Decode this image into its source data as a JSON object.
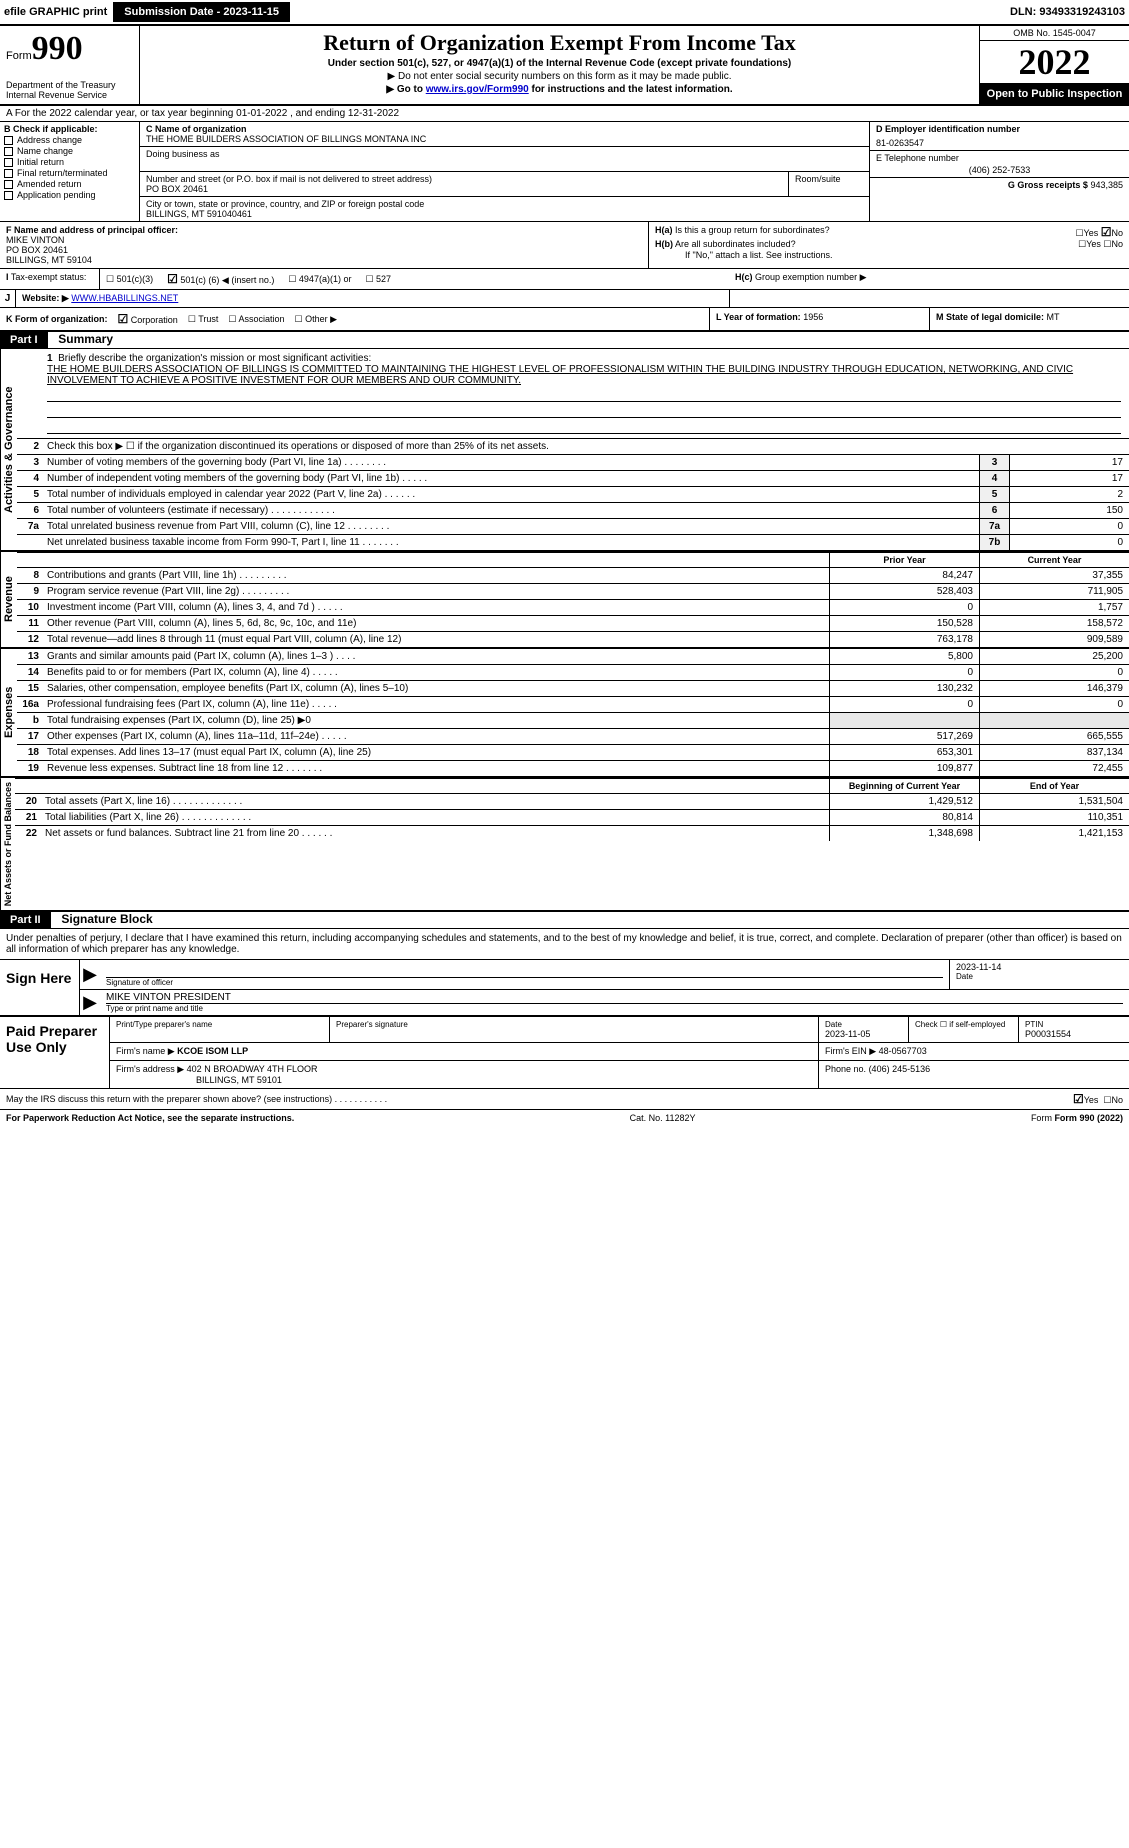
{
  "topbar": {
    "efile_label": "efile GRAPHIC print",
    "submission_label": "Submission Date - 2023-11-15",
    "dln_label": "DLN: 93493319243103"
  },
  "header": {
    "form_prefix": "Form",
    "form_number": "990",
    "title": "Return of Organization Exempt From Income Tax",
    "subtitle": "Under section 501(c), 527, or 4947(a)(1) of the Internal Revenue Code (except private foundations)",
    "note_ssn": "▶ Do not enter social security numbers on this form as it may be made public.",
    "note_link_pre": "▶ Go to ",
    "note_link": "www.irs.gov/Form990",
    "note_link_post": " for instructions and the latest information.",
    "dept": "Department of the Treasury",
    "irs": "Internal Revenue Service",
    "omb": "OMB No. 1545-0047",
    "year": "2022",
    "open_public": "Open to Public Inspection"
  },
  "line_a": "A For the 2022 calendar year, or tax year beginning 01-01-2022     , and ending 12-31-2022",
  "col_b": {
    "header": "B Check if applicable:",
    "items": [
      "Address change",
      "Name change",
      "Initial return",
      "Final return/terminated",
      "Amended return",
      "Application pending"
    ]
  },
  "col_c": {
    "name_label": "C Name of organization",
    "name_val": "THE HOME BUILDERS ASSOCIATION OF BILLINGS MONTANA INC",
    "dba_label": "Doing business as",
    "street_label": "Number and street (or P.O. box if mail is not delivered to street address)",
    "room_label": "Room/suite",
    "street_val": "PO BOX 20461",
    "city_label": "City or town, state or province, country, and ZIP or foreign postal code",
    "city_val": "BILLINGS, MT  591040461"
  },
  "col_de": {
    "d_label": "D Employer identification number",
    "d_val": "81-0263547",
    "e_label": "E Telephone number",
    "e_val": "(406) 252-7533",
    "g_label": "G Gross receipts $",
    "g_val": "943,385"
  },
  "f_block": {
    "label": "F Name and address of principal officer:",
    "name": "MIKE VINTON",
    "addr1": "PO BOX 20461",
    "addr2": "BILLINGS, MT  59104"
  },
  "h_block": {
    "ha_label": "H(a)",
    "ha_text": "Is this a group return for subordinates?",
    "hb_label": "H(b)",
    "hb_text": "Are all subordinates included?",
    "hb_note": "If \"No,\" attach a list. See instructions.",
    "hc_label": "H(c)",
    "hc_text": "Group exemption number ▶",
    "yes": "Yes",
    "no": "No"
  },
  "i_block": {
    "label": "I",
    "text": "Tax-exempt status:",
    "opt1": "501(c)(3)",
    "opt2_pre": "501(c) (",
    "opt2_val": "6",
    "opt2_post": ") ◀ (insert no.)",
    "opt3": "4947(a)(1) or",
    "opt4": "527"
  },
  "j_block": {
    "label": "J",
    "text": "Website: ▶",
    "val": "WWW.HBABILLINGS.NET"
  },
  "k_block": {
    "label": "K Form of organization:",
    "opts": [
      "Corporation",
      "Trust",
      "Association",
      "Other ▶"
    ],
    "l_label": "L Year of formation:",
    "l_val": "1956",
    "m_label": "M State of legal domicile:",
    "m_val": "MT"
  },
  "part1": {
    "part": "Part I",
    "title": "Summary",
    "line1_label": "1",
    "line1_text": "Briefly describe the organization's mission or most significant activities:",
    "mission": "THE HOME BUILDERS ASSOCIATION OF BILLINGS IS COMMITTED TO MAINTAINING THE HIGHEST LEVEL OF PROFESSIONALISM WITHIN THE BUILDING INDUSTRY THROUGH EDUCATION, NETWORKING, AND CIVIC INVOLVEMENT TO ACHIEVE A POSITIVE INVESTMENT FOR OUR MEMBERS AND OUR COMMUNITY.",
    "line2_n": "2",
    "line2_d": "Check this box ▶ ☐ if the organization discontinued its operations or disposed of more than 25% of its net assets.",
    "gov_rows": [
      {
        "n": "3",
        "d": "Number of voting members of the governing body (Part VI, line 1a)  .    .    .    .    .    .    .    .",
        "bn": "3",
        "v": "17"
      },
      {
        "n": "4",
        "d": "Number of independent voting members of the governing body (Part VI, line 1b)   .    .    .    .    .",
        "bn": "4",
        "v": "17"
      },
      {
        "n": "5",
        "d": "Total number of individuals employed in calendar year 2022 (Part V, line 2a)   .    .    .    .    .    .",
        "bn": "5",
        "v": "2"
      },
      {
        "n": "6",
        "d": "Total number of volunteers (estimate if necessary)    .    .    .    .    .    .    .    .    .    .    .    .",
        "bn": "6",
        "v": "150"
      },
      {
        "n": "7a",
        "d": "Total unrelated business revenue from Part VIII, column (C), line 12   .    .    .    .    .    .    .    .",
        "bn": "7a",
        "v": "0"
      },
      {
        "n": "",
        "d": "Net unrelated business taxable income from Form 990-T, Part I, line 11   .    .    .    .    .    .    .",
        "bn": "7b",
        "v": "0"
      }
    ],
    "prior_hdr": "Prior Year",
    "current_hdr": "Current Year",
    "rev_rows": [
      {
        "n": "8",
        "d": "Contributions and grants (Part VIII, line 1h)   .    .    .    .    .    .    .    .    .",
        "p": "84,247",
        "c": "37,355"
      },
      {
        "n": "9",
        "d": "Program service revenue (Part VIII, line 2g)    .    .    .    .    .    .    .    .    .",
        "p": "528,403",
        "c": "711,905"
      },
      {
        "n": "10",
        "d": "Investment income (Part VIII, column (A), lines 3, 4, and 7d )   .    .    .    .    .",
        "p": "0",
        "c": "1,757"
      },
      {
        "n": "11",
        "d": "Other revenue (Part VIII, column (A), lines 5, 6d, 8c, 9c, 10c, and 11e)",
        "p": "150,528",
        "c": "158,572"
      },
      {
        "n": "12",
        "d": "Total revenue—add lines 8 through 11 (must equal Part VIII, column (A), line 12)",
        "p": "763,178",
        "c": "909,589"
      }
    ],
    "exp_rows": [
      {
        "n": "13",
        "d": "Grants and similar amounts paid (Part IX, column (A), lines 1–3 )   .    .    .    .",
        "p": "5,800",
        "c": "25,200"
      },
      {
        "n": "14",
        "d": "Benefits paid to or for members (Part IX, column (A), line 4)   .    .    .    .    .",
        "p": "0",
        "c": "0"
      },
      {
        "n": "15",
        "d": "Salaries, other compensation, employee benefits (Part IX, column (A), lines 5–10)",
        "p": "130,232",
        "c": "146,379"
      },
      {
        "n": "16a",
        "d": "Professional fundraising fees (Part IX, column (A), line 11e)   .    .    .    .    .",
        "p": "0",
        "c": "0"
      },
      {
        "n": "b",
        "d": "Total fundraising expenses (Part IX, column (D), line 25) ▶0",
        "p": "",
        "c": "",
        "gray": true
      },
      {
        "n": "17",
        "d": "Other expenses (Part IX, column (A), lines 11a–11d, 11f–24e)   .    .    .    .    .",
        "p": "517,269",
        "c": "665,555"
      },
      {
        "n": "18",
        "d": "Total expenses. Add lines 13–17 (must equal Part IX, column (A), line 25)",
        "p": "653,301",
        "c": "837,134"
      },
      {
        "n": "19",
        "d": "Revenue less expenses. Subtract line 18 from line 12   .    .    .    .    .    .    .",
        "p": "109,877",
        "c": "72,455"
      }
    ],
    "na_hdr_p": "Beginning of Current Year",
    "na_hdr_c": "End of Year",
    "na_rows": [
      {
        "n": "20",
        "d": "Total assets (Part X, line 16)   .    .    .    .    .    .    .    .    .    .    .    .    .",
        "p": "1,429,512",
        "c": "1,531,504"
      },
      {
        "n": "21",
        "d": "Total liabilities (Part X, line 26)   .    .    .    .    .    .    .    .    .    .    .    .    .",
        "p": "80,814",
        "c": "110,351"
      },
      {
        "n": "22",
        "d": "Net assets or fund balances. Subtract line 21 from line 20    .    .    .    .    .    .",
        "p": "1,348,698",
        "c": "1,421,153"
      }
    ],
    "side_gov": "Activities & Governance",
    "side_rev": "Revenue",
    "side_exp": "Expenses",
    "side_na": "Net Assets or Fund Balances"
  },
  "part2": {
    "part": "Part II",
    "title": "Signature Block",
    "perjury": "Under penalties of perjury, I declare that I have examined this return, including accompanying schedules and statements, and to the best of my knowledge and belief, it is true, correct, and complete. Declaration of preparer (other than officer) is based on all information of which preparer has any knowledge.",
    "sign_here": "Sign Here",
    "sig_officer_label": "Signature of officer",
    "sig_date_label": "Date",
    "sig_date": "2023-11-14",
    "officer_name": "MIKE VINTON  PRESIDENT",
    "officer_sub": "Type or print name and title",
    "paid": "Paid Preparer Use Only",
    "prep_name_label": "Print/Type preparer's name",
    "prep_sig_label": "Preparer's signature",
    "prep_date_label": "Date",
    "prep_date": "2023-11-05",
    "self_emp_label": "Check ☐ if self-employed",
    "ptin_label": "PTIN",
    "ptin": "P00031554",
    "firm_name_label": "Firm's name    ▶",
    "firm_name": "KCOE ISOM LLP",
    "firm_ein_label": "Firm's EIN ▶",
    "firm_ein": "48-0567703",
    "firm_addr_label": "Firm's address ▶",
    "firm_addr1": "402 N BROADWAY 4TH FLOOR",
    "firm_addr2": "BILLINGS, MT  59101",
    "phone_label": "Phone no.",
    "phone": "(406) 245-5136",
    "discuss": "May the IRS discuss this return with the preparer shown above? (see instructions)   .    .    .    .    .    .    .    .    .    .    .",
    "discuss_yes": "Yes",
    "discuss_no": "No"
  },
  "footer": {
    "pra": "For Paperwork Reduction Act Notice, see the separate instructions.",
    "cat": "Cat. No. 11282Y",
    "form": "Form 990 (2022)"
  }
}
